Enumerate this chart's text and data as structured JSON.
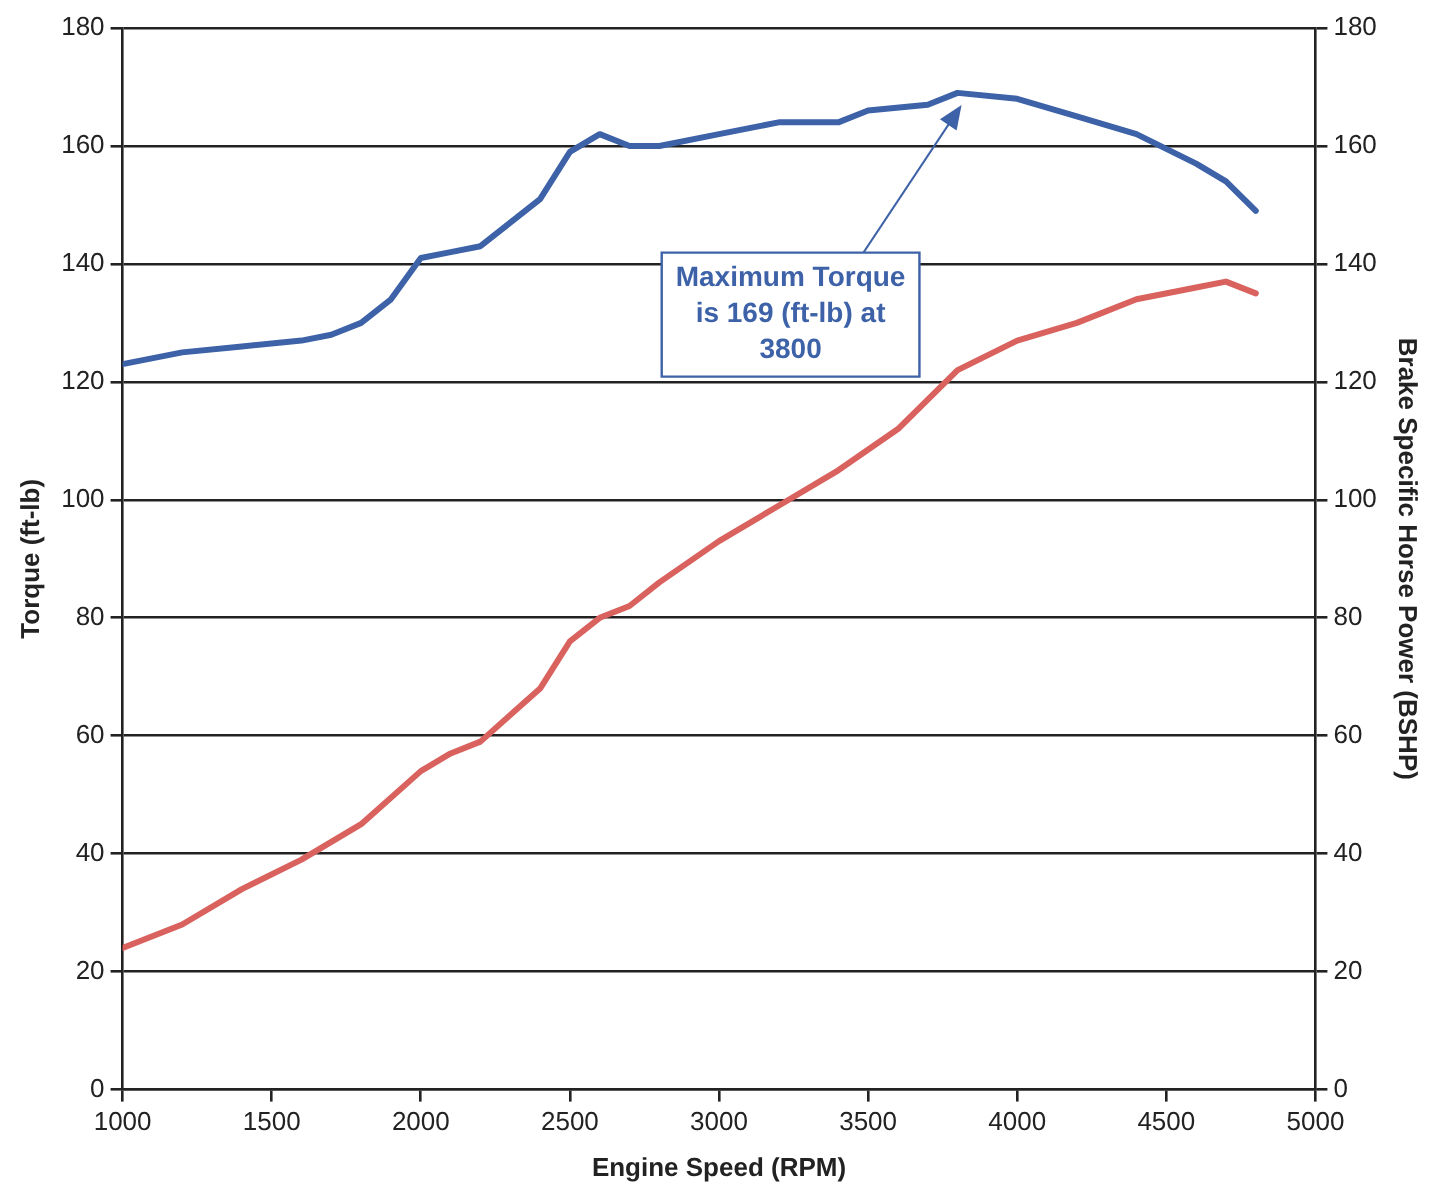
{
  "chart_data": {
    "type": "line",
    "xlabel": "Engine Speed (RPM)",
    "ylabel": "Torque (ft-lb)",
    "y2label": "Brake Specific Horse Power (BSHP)",
    "xlim": [
      1000,
      5000
    ],
    "xticks": [
      1000,
      1500,
      2000,
      2500,
      3000,
      3500,
      4000,
      4500,
      5000
    ],
    "ylim": [
      0,
      180
    ],
    "yticks": [
      0,
      20,
      40,
      60,
      80,
      100,
      120,
      140,
      160,
      180
    ],
    "y2lim": [
      0,
      180
    ],
    "y2ticks": [
      0,
      20,
      40,
      60,
      80,
      100,
      120,
      140,
      160,
      180
    ],
    "grid": "y",
    "legend": false,
    "marker": "none",
    "line_style": "solid",
    "annotations": [
      "Maximum Torque is 169 (ft-lb) at 3800"
    ],
    "series": [
      {
        "color": "#3d62a8",
        "x": [
          1000,
          1200,
          1400,
          1600,
          1700,
          1800,
          1900,
          2000,
          2100,
          2200,
          2300,
          2400,
          2500,
          2600,
          2700,
          2800,
          3000,
          3200,
          3400,
          3500,
          3700,
          3800,
          4000,
          4200,
          4400,
          4600,
          4700,
          4800
        ],
        "values": [
          123,
          125,
          126,
          127,
          128,
          130,
          134,
          141,
          142,
          143,
          147,
          151,
          159,
          162,
          160,
          160,
          162,
          164,
          164,
          166,
          167,
          169,
          168,
          165,
          162,
          157,
          154,
          149
        ]
      },
      {
        "color": "#d9625e",
        "x": [
          1000,
          1200,
          1400,
          1600,
          1800,
          2000,
          2100,
          2200,
          2400,
          2500,
          2600,
          2700,
          2800,
          3000,
          3200,
          3400,
          3600,
          3800,
          4000,
          4200,
          4400,
          4600,
          4700,
          4800
        ],
        "values": [
          24,
          28,
          34,
          39,
          45,
          54,
          57,
          59,
          68,
          76,
          80,
          82,
          86,
          93,
          99,
          105,
          112,
          122,
          127,
          130,
          134,
          136,
          137,
          135
        ]
      }
    ]
  }
}
